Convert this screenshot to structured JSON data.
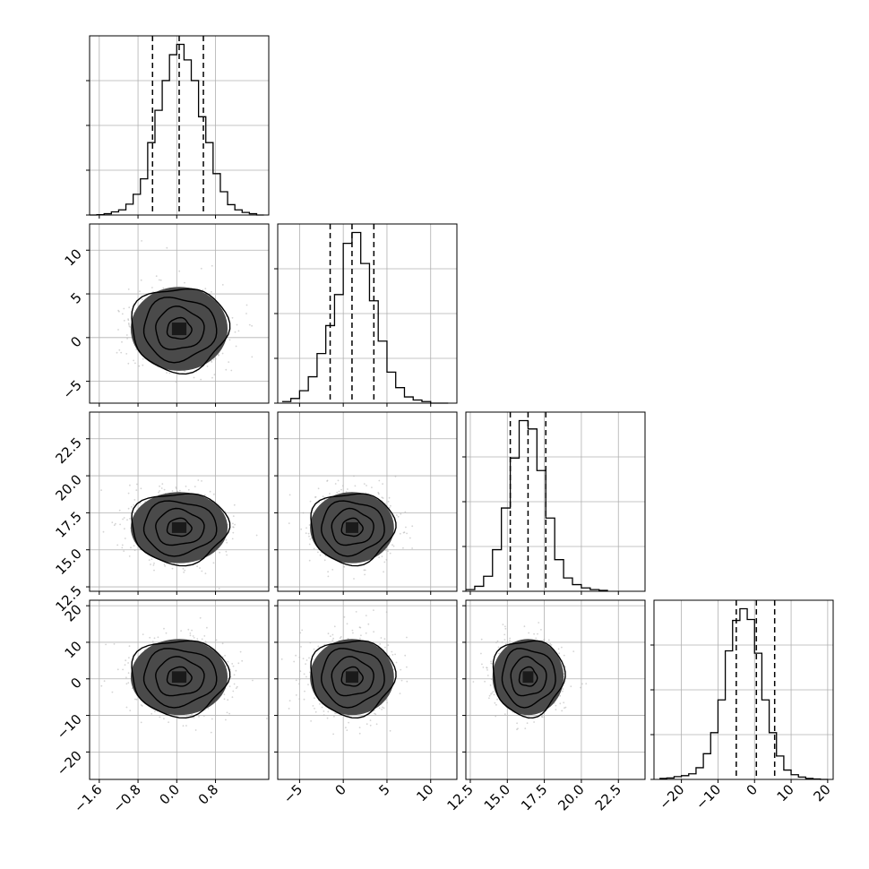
{
  "chart_data": {
    "type": "corner",
    "parameters": [
      {
        "index": 0,
        "range": [
          -1.8,
          1.9
        ],
        "ticks": [
          -1.6,
          -0.8,
          0.0,
          0.8
        ],
        "tick_labels": [
          "−1.6",
          "−0.8",
          "0.0",
          "0.8"
        ],
        "quantiles": [
          -0.5,
          0.05,
          0.55
        ],
        "histogram": {
          "bin_edges": [
            -1.8,
            -1.65,
            -1.5,
            -1.35,
            -1.2,
            -1.05,
            -0.9,
            -0.75,
            -0.6,
            -0.45,
            -0.3,
            -0.15,
            0.0,
            0.15,
            0.3,
            0.45,
            0.6,
            0.75,
            0.9,
            1.05,
            1.2,
            1.35,
            1.5,
            1.65,
            1.8
          ],
          "counts": [
            0,
            1,
            5,
            12,
            20,
            42,
            80,
            140,
            280,
            405,
            520,
            620,
            660,
            600,
            520,
            380,
            280,
            160,
            90,
            40,
            20,
            10,
            5,
            0
          ]
        }
      },
      {
        "index": 1,
        "range": [
          -7.5,
          13.0
        ],
        "ticks": [
          -5,
          0,
          5,
          10
        ],
        "tick_labels": [
          "−5",
          "0",
          "5",
          "10"
        ],
        "quantiles": [
          -1.5,
          1.0,
          3.5
        ],
        "histogram": {
          "bin_edges": [
            -7,
            -6,
            -5,
            -4,
            -3,
            -2,
            -1,
            0,
            1,
            2,
            3,
            4,
            5,
            6,
            7,
            8,
            9,
            10,
            11,
            12
          ],
          "counts": [
            1,
            3,
            8,
            17,
            32,
            50,
            70,
            103,
            110,
            90,
            66,
            40,
            20,
            10,
            4,
            2,
            1,
            0,
            0
          ]
        }
      },
      {
        "index": 2,
        "range": [
          12.2,
          24.3
        ],
        "ticks": [
          12.5,
          15.0,
          17.5,
          20.0,
          22.5
        ],
        "tick_labels": [
          "12.5",
          "15.0",
          "17.5",
          "20.0",
          "22.5"
        ],
        "quantiles": [
          15.2,
          16.4,
          17.6
        ],
        "histogram": {
          "bin_edges": [
            12.2,
            12.8,
            13.4,
            14.0,
            14.6,
            15.2,
            15.8,
            16.4,
            17.0,
            17.6,
            18.2,
            18.8,
            19.4,
            20.0,
            20.6,
            21.2,
            21.8
          ],
          "counts": [
            2,
            6,
            18,
            50,
            100,
            160,
            205,
            195,
            145,
            88,
            38,
            16,
            8,
            4,
            2,
            1
          ]
        }
      },
      {
        "index": 3,
        "range": [
          -27.5,
          21.5
        ],
        "ticks": [
          -20,
          -10,
          0,
          10,
          20
        ],
        "tick_labels": [
          "−20",
          "−10",
          "0",
          "10",
          "20"
        ],
        "quantiles": [
          -5.0,
          0.5,
          5.5
        ],
        "histogram": {
          "bin_edges": [
            -26,
            -24,
            -22,
            -20,
            -18,
            -16,
            -14,
            -12,
            -10,
            -8,
            -6,
            -4,
            -2,
            0,
            2,
            4,
            6,
            8,
            10,
            12,
            14,
            16,
            18,
            20
          ],
          "counts": [
            2,
            3,
            6,
            8,
            12,
            25,
            55,
            100,
            170,
            275,
            340,
            365,
            342,
            270,
            170,
            100,
            50,
            20,
            10,
            5,
            2,
            1,
            0
          ]
        }
      }
    ],
    "pairs": [
      {
        "row": 1,
        "col": 0,
        "center": [
          0.05,
          1.0
        ],
        "sd": [
          0.5,
          2.4
        ]
      },
      {
        "row": 2,
        "col": 0,
        "center": [
          0.05,
          16.5
        ],
        "sd": [
          0.5,
          1.2
        ]
      },
      {
        "row": 2,
        "col": 1,
        "center": [
          1.0,
          16.5
        ],
        "sd": [
          2.4,
          1.2
        ]
      },
      {
        "row": 3,
        "col": 0,
        "center": [
          0.05,
          0.5
        ],
        "sd": [
          0.5,
          5.2
        ]
      },
      {
        "row": 3,
        "col": 1,
        "center": [
          1.0,
          0.5
        ],
        "sd": [
          2.4,
          5.2
        ]
      },
      {
        "row": 3,
        "col": 2,
        "center": [
          16.4,
          0.5
        ],
        "sd": [
          1.2,
          5.2
        ]
      }
    ],
    "contour_levels_sigma": [
      0.5,
      1.0,
      1.5,
      2.0
    ],
    "grid": true,
    "colors": {
      "line": "#000000",
      "points": "#b0b0b0",
      "grid": "#b0b0b0"
    }
  }
}
